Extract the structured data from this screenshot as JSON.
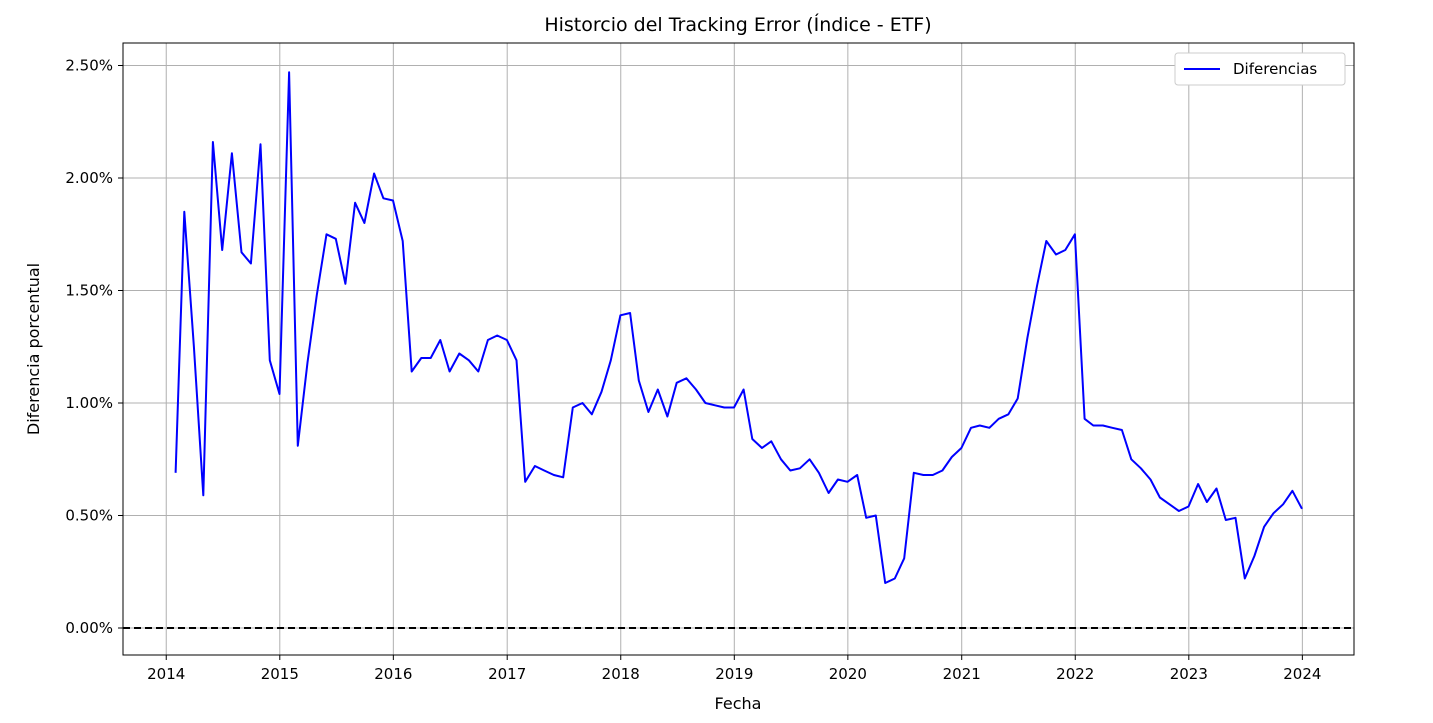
{
  "chart_data": {
    "type": "line",
    "title": "Historcio del Tracking Error (Índice - ETF)",
    "xlabel": "Fecha",
    "ylabel": "Diferencia porcentual",
    "x_ticks": [
      "2014",
      "2015",
      "2016",
      "2017",
      "2018",
      "2019",
      "2020",
      "2021",
      "2022",
      "2023",
      "2024"
    ],
    "y_ticks": [
      "0.00%",
      "0.50%",
      "1.00%",
      "1.50%",
      "2.00%",
      "2.50%"
    ],
    "y_tick_values": [
      0,
      0.5,
      1.0,
      1.5,
      2.0,
      2.5
    ],
    "xlim": [
      "2013-08-15",
      "2024-06-15"
    ],
    "ylim": [
      -0.12,
      2.6
    ],
    "grid": true,
    "legend_position": "top-right",
    "reference_line": {
      "y": 0,
      "style": "dashed",
      "color": "#000000"
    },
    "series": [
      {
        "name": "Diferencias",
        "color": "#0000ff",
        "points": [
          [
            "2014-01-31",
            0.69
          ],
          [
            "2014-02-28",
            1.85
          ],
          [
            "2014-03-31",
            1.25
          ],
          [
            "2014-04-30",
            0.59
          ],
          [
            "2014-05-31",
            2.16
          ],
          [
            "2014-06-30",
            1.68
          ],
          [
            "2014-07-31",
            2.11
          ],
          [
            "2014-08-31",
            1.67
          ],
          [
            "2014-09-30",
            1.62
          ],
          [
            "2014-10-31",
            2.15
          ],
          [
            "2014-11-30",
            1.19
          ],
          [
            "2014-12-31",
            1.04
          ],
          [
            "2015-01-31",
            2.47
          ],
          [
            "2015-02-28",
            0.81
          ],
          [
            "2015-03-31",
            1.18
          ],
          [
            "2015-04-30",
            1.48
          ],
          [
            "2015-05-31",
            1.75
          ],
          [
            "2015-06-30",
            1.73
          ],
          [
            "2015-07-31",
            1.53
          ],
          [
            "2015-08-31",
            1.89
          ],
          [
            "2015-09-30",
            1.8
          ],
          [
            "2015-10-31",
            2.02
          ],
          [
            "2015-11-30",
            1.91
          ],
          [
            "2015-12-31",
            1.9
          ],
          [
            "2016-01-31",
            1.72
          ],
          [
            "2016-02-29",
            1.14
          ],
          [
            "2016-03-31",
            1.2
          ],
          [
            "2016-04-30",
            1.2
          ],
          [
            "2016-05-31",
            1.28
          ],
          [
            "2016-06-30",
            1.14
          ],
          [
            "2016-07-31",
            1.22
          ],
          [
            "2016-08-31",
            1.19
          ],
          [
            "2016-09-30",
            1.14
          ],
          [
            "2016-10-31",
            1.28
          ],
          [
            "2016-11-30",
            1.3
          ],
          [
            "2016-12-31",
            1.28
          ],
          [
            "2017-01-31",
            1.19
          ],
          [
            "2017-02-28",
            0.65
          ],
          [
            "2017-03-31",
            0.72
          ],
          [
            "2017-04-30",
            0.7
          ],
          [
            "2017-05-31",
            0.68
          ],
          [
            "2017-06-30",
            0.67
          ],
          [
            "2017-07-31",
            0.98
          ],
          [
            "2017-08-31",
            1.0
          ],
          [
            "2017-09-30",
            0.95
          ],
          [
            "2017-10-31",
            1.05
          ],
          [
            "2017-11-30",
            1.19
          ],
          [
            "2017-12-31",
            1.39
          ],
          [
            "2018-01-31",
            1.4
          ],
          [
            "2018-02-28",
            1.1
          ],
          [
            "2018-03-31",
            0.96
          ],
          [
            "2018-04-30",
            1.06
          ],
          [
            "2018-05-31",
            0.94
          ],
          [
            "2018-06-30",
            1.09
          ],
          [
            "2018-07-31",
            1.11
          ],
          [
            "2018-08-31",
            1.06
          ],
          [
            "2018-09-30",
            1.0
          ],
          [
            "2018-10-31",
            0.99
          ],
          [
            "2018-11-30",
            0.98
          ],
          [
            "2018-12-31",
            0.98
          ],
          [
            "2019-01-31",
            1.06
          ],
          [
            "2019-02-28",
            0.84
          ],
          [
            "2019-03-31",
            0.8
          ],
          [
            "2019-04-30",
            0.83
          ],
          [
            "2019-05-31",
            0.75
          ],
          [
            "2019-06-30",
            0.7
          ],
          [
            "2019-07-31",
            0.71
          ],
          [
            "2019-08-31",
            0.75
          ],
          [
            "2019-09-30",
            0.69
          ],
          [
            "2019-10-31",
            0.6
          ],
          [
            "2019-11-30",
            0.66
          ],
          [
            "2019-12-31",
            0.65
          ],
          [
            "2020-01-31",
            0.68
          ],
          [
            "2020-02-29",
            0.49
          ],
          [
            "2020-03-31",
            0.5
          ],
          [
            "2020-04-30",
            0.2
          ],
          [
            "2020-05-31",
            0.22
          ],
          [
            "2020-06-30",
            0.31
          ],
          [
            "2020-07-31",
            0.69
          ],
          [
            "2020-08-31",
            0.68
          ],
          [
            "2020-09-30",
            0.68
          ],
          [
            "2020-10-31",
            0.7
          ],
          [
            "2020-11-30",
            0.76
          ],
          [
            "2020-12-31",
            0.8
          ],
          [
            "2021-01-31",
            0.89
          ],
          [
            "2021-02-28",
            0.9
          ],
          [
            "2021-03-31",
            0.89
          ],
          [
            "2021-04-30",
            0.93
          ],
          [
            "2021-05-31",
            0.95
          ],
          [
            "2021-06-30",
            1.02
          ],
          [
            "2021-07-31",
            1.29
          ],
          [
            "2021-08-31",
            1.52
          ],
          [
            "2021-09-30",
            1.72
          ],
          [
            "2021-10-31",
            1.66
          ],
          [
            "2021-11-30",
            1.68
          ],
          [
            "2021-12-31",
            1.75
          ],
          [
            "2022-01-31",
            0.93
          ],
          [
            "2022-02-28",
            0.9
          ],
          [
            "2022-03-31",
            0.9
          ],
          [
            "2022-04-30",
            0.89
          ],
          [
            "2022-05-31",
            0.88
          ],
          [
            "2022-06-30",
            0.75
          ],
          [
            "2022-07-31",
            0.71
          ],
          [
            "2022-08-31",
            0.66
          ],
          [
            "2022-09-30",
            0.58
          ],
          [
            "2022-10-31",
            0.55
          ],
          [
            "2022-11-30",
            0.52
          ],
          [
            "2022-12-31",
            0.54
          ],
          [
            "2023-01-31",
            0.64
          ],
          [
            "2023-02-28",
            0.56
          ],
          [
            "2023-03-31",
            0.62
          ],
          [
            "2023-04-30",
            0.48
          ],
          [
            "2023-05-31",
            0.49
          ],
          [
            "2023-06-30",
            0.22
          ],
          [
            "2023-07-31",
            0.32
          ],
          [
            "2023-08-31",
            0.45
          ],
          [
            "2023-09-30",
            0.51
          ],
          [
            "2023-10-31",
            0.55
          ],
          [
            "2023-11-30",
            0.61
          ],
          [
            "2023-12-31",
            0.53
          ]
        ]
      }
    ]
  }
}
